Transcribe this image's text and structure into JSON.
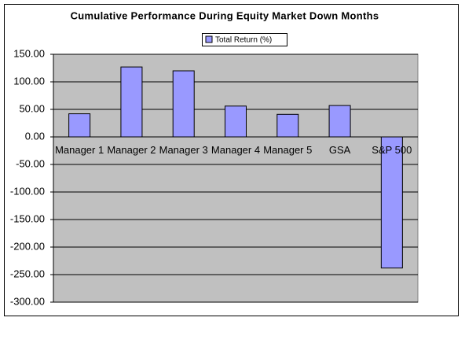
{
  "chart_data": {
    "type": "bar",
    "title": "Cumulative Performance During Equity Market Down Months",
    "categories": [
      "Manager 1",
      "Manager 2",
      "Manager 3",
      "Manager 4",
      "Manager 5",
      "GSA",
      "S&P 500"
    ],
    "series": [
      {
        "name": "Total Return (%)",
        "color": "#9999ff",
        "values": [
          42,
          127,
          120,
          56,
          41,
          57,
          -238
        ]
      }
    ],
    "ylim": [
      -300,
      150
    ],
    "yticks": [
      {
        "value": -300,
        "label": "-300.00"
      },
      {
        "value": -250,
        "label": "-250.00"
      },
      {
        "value": -200,
        "label": "-200.00"
      },
      {
        "value": -150,
        "label": "-150.00"
      },
      {
        "value": -100,
        "label": "-100.00"
      },
      {
        "value": -50,
        "label": "-50.00"
      },
      {
        "value": 0,
        "label": "0.00"
      },
      {
        "value": 50,
        "label": "50.00"
      },
      {
        "value": 100,
        "label": "100.00"
      },
      {
        "value": 150,
        "label": "150.00"
      }
    ],
    "grid": true,
    "legend": "top"
  }
}
